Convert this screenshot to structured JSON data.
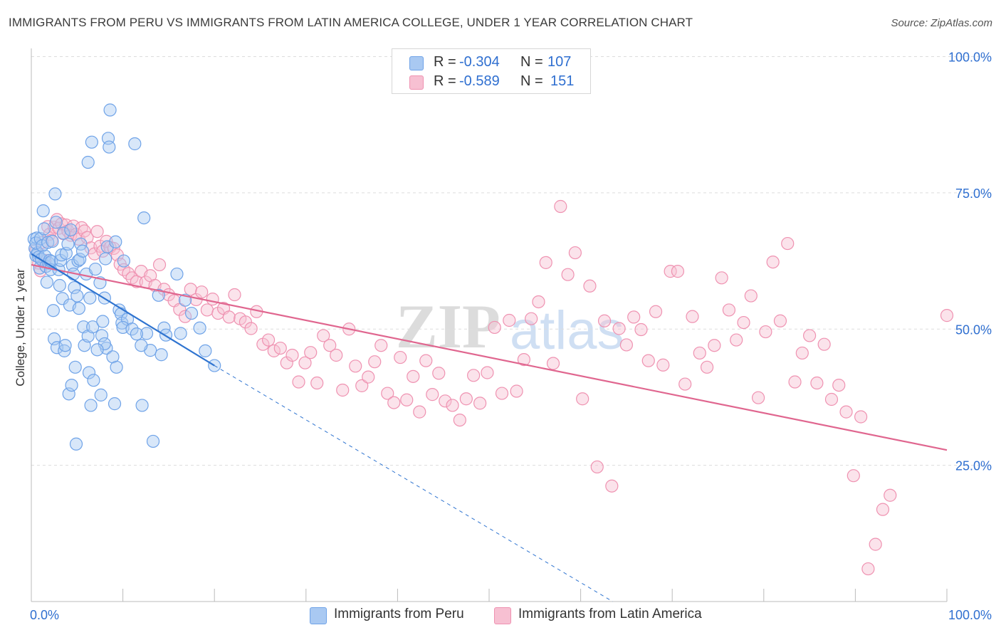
{
  "title": "IMMIGRANTS FROM PERU VS IMMIGRANTS FROM LATIN AMERICA COLLEGE, UNDER 1 YEAR CORRELATION CHART",
  "source": "Source: ZipAtlas.com",
  "watermark": "ZIPatlas",
  "colors": {
    "peru": "#6fa3e8",
    "peru_fill": "#a9c9f2",
    "peru_line": "#2f74d0",
    "latin": "#ef92b1",
    "latin_fill": "#f7c0d2",
    "latin_line": "#e0668f",
    "accent_text": "#2f6fd0",
    "grid": "#dddddd"
  },
  "legend": {
    "rows": [
      {
        "r_label": "R =",
        "r_value": "-0.304",
        "n_label": "N =",
        "n_value": "107"
      },
      {
        "r_label": "R =",
        "r_value": "-0.589",
        "n_label": "N =",
        "n_value": "151"
      }
    ]
  },
  "bottom_legend": [
    "Immigrants from Peru",
    "Immigrants from Latin America"
  ],
  "chart_data": {
    "type": "scatter",
    "title": "IMMIGRANTS FROM PERU VS IMMIGRANTS FROM LATIN AMERICA COLLEGE, UNDER 1 YEAR CORRELATION CHART",
    "xlabel": "",
    "ylabel": "College, Under 1 year",
    "xlim": [
      0,
      100
    ],
    "ylim": [
      0,
      100
    ],
    "x_tick_labels": [
      "0.0%",
      "100.0%"
    ],
    "y_tick_labels": [
      "100.0%",
      "75.0%",
      "50.0%",
      "25.0%"
    ],
    "y_ticks": [
      100,
      75,
      50,
      25
    ],
    "grid": true,
    "series": [
      {
        "name": "Immigrants from Peru",
        "R": -0.304,
        "N": 107,
        "trend": {
          "x": [
            0,
            20
          ],
          "y": [
            63.8,
            43.3
          ]
        },
        "trend_dashed": {
          "x": [
            20,
            63.5
          ],
          "y": [
            43.3,
            -1.5
          ]
        },
        "points": [
          [
            0.3,
            66.5
          ],
          [
            0.4,
            64.8
          ],
          [
            0.5,
            63.5
          ],
          [
            0.6,
            66.7
          ],
          [
            0.7,
            64.0
          ],
          [
            0.5,
            65.8
          ],
          [
            0.8,
            63.2
          ],
          [
            0.9,
            61.2
          ],
          [
            1.0,
            66.6
          ],
          [
            1.1,
            62.8
          ],
          [
            1.2,
            65.3
          ],
          [
            1.3,
            71.7
          ],
          [
            1.4,
            68.4
          ],
          [
            1.5,
            63.4
          ],
          [
            1.6,
            61.5
          ],
          [
            1.7,
            58.6
          ],
          [
            1.8,
            65.9
          ],
          [
            1.9,
            62.1
          ],
          [
            2.0,
            62.6
          ],
          [
            2.1,
            60.9
          ],
          [
            2.2,
            62.4
          ],
          [
            2.3,
            66.1
          ],
          [
            2.4,
            53.4
          ],
          [
            2.5,
            48.2
          ],
          [
            2.6,
            74.8
          ],
          [
            2.7,
            69.6
          ],
          [
            2.8,
            46.6
          ],
          [
            3.0,
            60.9
          ],
          [
            3.1,
            58.0
          ],
          [
            3.2,
            62.6
          ],
          [
            3.3,
            63.6
          ],
          [
            3.4,
            55.6
          ],
          [
            3.5,
            67.6
          ],
          [
            3.6,
            46.0
          ],
          [
            3.7,
            47.0
          ],
          [
            3.8,
            63.9
          ],
          [
            4.0,
            65.6
          ],
          [
            4.1,
            38.1
          ],
          [
            4.2,
            54.4
          ],
          [
            4.3,
            68.2
          ],
          [
            4.4,
            39.7
          ],
          [
            4.5,
            61.7
          ],
          [
            4.6,
            60.1
          ],
          [
            4.7,
            57.6
          ],
          [
            4.8,
            43.0
          ],
          [
            4.9,
            28.9
          ],
          [
            5.0,
            56.1
          ],
          [
            5.1,
            62.5
          ],
          [
            5.2,
            53.8
          ],
          [
            5.3,
            62.8
          ],
          [
            5.4,
            65.6
          ],
          [
            5.6,
            64.3
          ],
          [
            5.7,
            50.4
          ],
          [
            5.8,
            47.0
          ],
          [
            6.0,
            60.1
          ],
          [
            6.2,
            48.7
          ],
          [
            6.3,
            42.0
          ],
          [
            6.4,
            55.7
          ],
          [
            6.5,
            36.0
          ],
          [
            6.6,
            84.3
          ],
          [
            6.7,
            50.4
          ],
          [
            6.8,
            40.6
          ],
          [
            7.0,
            61.0
          ],
          [
            6.2,
            80.6
          ],
          [
            7.5,
            58.5
          ],
          [
            7.6,
            37.9
          ],
          [
            7.7,
            48.8
          ],
          [
            7.8,
            51.4
          ],
          [
            8.0,
            55.7
          ],
          [
            8.1,
            62.9
          ],
          [
            8.2,
            46.5
          ],
          [
            8.3,
            65.1
          ],
          [
            8.4,
            85.0
          ],
          [
            8.5,
            83.4
          ],
          [
            8.6,
            90.2
          ],
          [
            8.9,
            44.9
          ],
          [
            9.1,
            36.3
          ],
          [
            9.2,
            66.0
          ],
          [
            9.6,
            53.5
          ],
          [
            9.8,
            52.8
          ],
          [
            9.9,
            51.1
          ],
          [
            10.1,
            62.5
          ],
          [
            11.3,
            84.0
          ],
          [
            10.5,
            51.8
          ],
          [
            10.0,
            50.3
          ],
          [
            12.3,
            70.4
          ],
          [
            11.0,
            50.0
          ],
          [
            12.6,
            49.2
          ],
          [
            13.0,
            46.1
          ],
          [
            14.2,
            45.3
          ],
          [
            12.1,
            36.0
          ],
          [
            13.3,
            29.4
          ],
          [
            12.0,
            47.0
          ],
          [
            13.9,
            56.2
          ],
          [
            14.5,
            50.2
          ],
          [
            16.3,
            49.2
          ],
          [
            11.5,
            49.1
          ],
          [
            8.0,
            47.3
          ],
          [
            7.2,
            46.2
          ],
          [
            9.3,
            43.0
          ],
          [
            15.9,
            60.1
          ],
          [
            16.8,
            55.3
          ],
          [
            17.5,
            52.9
          ],
          [
            18.4,
            50.2
          ],
          [
            14.7,
            48.9
          ],
          [
            19.0,
            46.0
          ],
          [
            20.0,
            43.3
          ]
        ]
      },
      {
        "name": "Immigrants from Latin America",
        "R": -0.589,
        "N": 151,
        "trend": {
          "x": [
            0,
            100
          ],
          "y": [
            61.8,
            27.8
          ]
        },
        "points": [
          [
            0.5,
            64.5
          ],
          [
            0.8,
            62.1
          ],
          [
            1.0,
            60.7
          ],
          [
            1.2,
            65.9
          ],
          [
            1.5,
            62.6
          ],
          [
            1.8,
            68.8
          ],
          [
            2.0,
            67.4
          ],
          [
            2.2,
            66.3
          ],
          [
            2.5,
            68.7
          ],
          [
            2.8,
            70.1
          ],
          [
            3.0,
            68.5
          ],
          [
            3.3,
            69.3
          ],
          [
            3.5,
            67.5
          ],
          [
            3.8,
            69.1
          ],
          [
            4.0,
            68.0
          ],
          [
            4.3,
            67.2
          ],
          [
            4.6,
            68.9
          ],
          [
            4.9,
            67.4
          ],
          [
            5.2,
            66.5
          ],
          [
            5.5,
            68.6
          ],
          [
            5.8,
            68.0
          ],
          [
            6.1,
            66.8
          ],
          [
            6.5,
            64.9
          ],
          [
            6.9,
            63.8
          ],
          [
            7.2,
            67.9
          ],
          [
            7.5,
            65.2
          ],
          [
            7.8,
            64.3
          ],
          [
            8.2,
            66.1
          ],
          [
            8.6,
            65.0
          ],
          [
            9.0,
            64.8
          ],
          [
            9.4,
            63.6
          ],
          [
            9.7,
            61.9
          ],
          [
            10.1,
            60.9
          ],
          [
            10.6,
            60.2
          ],
          [
            11.0,
            59.4
          ],
          [
            11.5,
            58.7
          ],
          [
            12.0,
            60.6
          ],
          [
            12.5,
            58.6
          ],
          [
            13.0,
            59.8
          ],
          [
            13.5,
            58.0
          ],
          [
            14.0,
            61.8
          ],
          [
            14.5,
            57.3
          ],
          [
            15.0,
            56.3
          ],
          [
            15.6,
            55.2
          ],
          [
            16.2,
            53.6
          ],
          [
            16.8,
            52.3
          ],
          [
            17.4,
            57.3
          ],
          [
            18.0,
            55.4
          ],
          [
            18.6,
            56.8
          ],
          [
            19.2,
            53.5
          ],
          [
            19.8,
            55.5
          ],
          [
            20.4,
            52.9
          ],
          [
            21.0,
            53.8
          ],
          [
            21.6,
            52.2
          ],
          [
            22.2,
            56.3
          ],
          [
            22.8,
            51.9
          ],
          [
            23.4,
            51.3
          ],
          [
            24.0,
            50.1
          ],
          [
            24.6,
            53.2
          ],
          [
            25.3,
            47.2
          ],
          [
            25.9,
            48.0
          ],
          [
            26.5,
            46.0
          ],
          [
            27.2,
            46.5
          ],
          [
            27.9,
            43.8
          ],
          [
            28.5,
            45.2
          ],
          [
            29.2,
            40.3
          ],
          [
            29.9,
            43.8
          ],
          [
            30.5,
            45.7
          ],
          [
            31.2,
            40.1
          ],
          [
            31.9,
            48.8
          ],
          [
            32.6,
            47.0
          ],
          [
            33.3,
            45.2
          ],
          [
            34.0,
            38.8
          ],
          [
            34.7,
            50.0
          ],
          [
            35.4,
            43.2
          ],
          [
            36.1,
            39.6
          ],
          [
            36.8,
            41.2
          ],
          [
            37.5,
            44.0
          ],
          [
            38.2,
            47.0
          ],
          [
            38.9,
            38.2
          ],
          [
            39.6,
            36.5
          ],
          [
            40.3,
            44.8
          ],
          [
            41.0,
            37.0
          ],
          [
            41.7,
            41.3
          ],
          [
            42.4,
            34.8
          ],
          [
            43.1,
            44.2
          ],
          [
            43.8,
            38.0
          ],
          [
            44.5,
            41.9
          ],
          [
            45.2,
            36.8
          ],
          [
            46.0,
            36.0
          ],
          [
            46.8,
            33.3
          ],
          [
            47.5,
            37.2
          ],
          [
            48.3,
            41.5
          ],
          [
            49.0,
            36.4
          ],
          [
            49.8,
            42.0
          ],
          [
            50.6,
            50.3
          ],
          [
            51.4,
            38.2
          ],
          [
            52.2,
            51.6
          ],
          [
            53.0,
            38.6
          ],
          [
            53.8,
            44.4
          ],
          [
            54.6,
            51.9
          ],
          [
            55.4,
            55.0
          ],
          [
            56.2,
            62.2
          ],
          [
            57.0,
            43.7
          ],
          [
            57.8,
            72.5
          ],
          [
            58.6,
            60.0
          ],
          [
            59.4,
            64.0
          ],
          [
            60.2,
            37.2
          ],
          [
            61.0,
            57.9
          ],
          [
            61.8,
            24.7
          ],
          [
            62.6,
            51.5
          ],
          [
            63.4,
            21.2
          ],
          [
            64.2,
            50.1
          ],
          [
            65.0,
            47.1
          ],
          [
            65.8,
            52.2
          ],
          [
            66.6,
            49.9
          ],
          [
            67.4,
            44.2
          ],
          [
            68.2,
            53.2
          ],
          [
            69.0,
            43.4
          ],
          [
            69.8,
            60.6
          ],
          [
            70.6,
            60.6
          ],
          [
            71.4,
            39.9
          ],
          [
            72.2,
            52.3
          ],
          [
            73.0,
            45.6
          ],
          [
            73.8,
            43.0
          ],
          [
            74.6,
            47.0
          ],
          [
            75.4,
            59.4
          ],
          [
            76.2,
            53.5
          ],
          [
            77.0,
            48.0
          ],
          [
            77.8,
            51.2
          ],
          [
            78.6,
            56.1
          ],
          [
            79.4,
            37.4
          ],
          [
            80.2,
            49.5
          ],
          [
            81.0,
            62.3
          ],
          [
            81.8,
            51.5
          ],
          [
            82.6,
            65.7
          ],
          [
            83.4,
            40.3
          ],
          [
            84.2,
            45.6
          ],
          [
            85.0,
            48.8
          ],
          [
            85.8,
            40.1
          ],
          [
            86.6,
            47.2
          ],
          [
            87.4,
            37.1
          ],
          [
            88.2,
            39.7
          ],
          [
            89.0,
            34.8
          ],
          [
            89.8,
            23.1
          ],
          [
            90.6,
            33.9
          ],
          [
            91.4,
            6.0
          ],
          [
            92.2,
            10.5
          ],
          [
            93.0,
            16.9
          ],
          [
            93.8,
            19.5
          ],
          [
            100.0,
            52.5
          ]
        ]
      }
    ]
  }
}
